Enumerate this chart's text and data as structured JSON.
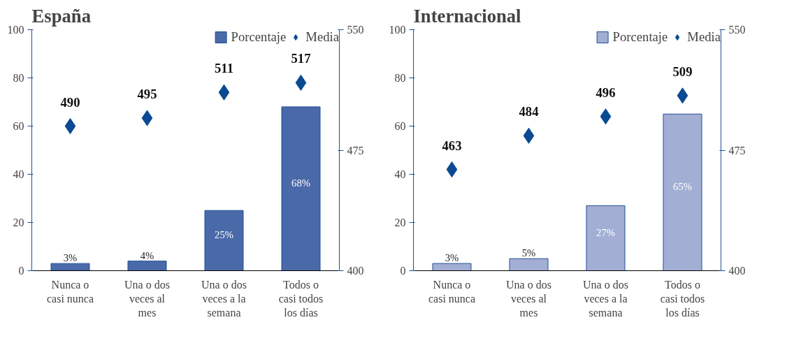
{
  "chart_data": [
    {
      "type": "bar",
      "title": "España",
      "categories": [
        "Nunca o casi nunca",
        "Una o dos veces al mes",
        "Una o dos veces a la semana",
        "Todos o casi todos los días"
      ],
      "series": [
        {
          "name": "Porcentaje",
          "type": "bar",
          "color": "#4a69a8",
          "values": [
            3,
            4,
            25,
            68
          ],
          "value_labels": [
            "3%",
            "4%",
            "25%",
            "68%"
          ]
        },
        {
          "name": "Media",
          "type": "scatter",
          "axis": "y2",
          "marker": "diamond",
          "color": "#0a4a92",
          "values": [
            490,
            495,
            511,
            517
          ],
          "value_labels": [
            "490",
            "495",
            "511",
            "517"
          ]
        }
      ],
      "ylim": [
        0,
        100
      ],
      "yticks": [
        0,
        20,
        40,
        60,
        80,
        100
      ],
      "y2lim": [
        400,
        550
      ],
      "y2ticks": [
        400,
        475,
        550
      ],
      "grid": false,
      "legend": "top right"
    },
    {
      "type": "bar",
      "title": "Internacional",
      "categories": [
        "Nunca o casi nunca",
        "Una o dos veces al mes",
        "Una o dos veces a la semana",
        "Todos o casi todos los días"
      ],
      "series": [
        {
          "name": "Porcentaje",
          "type": "bar",
          "color": "#a3aed4",
          "values": [
            3,
            5,
            27,
            65
          ],
          "value_labels": [
            "3%",
            "5%",
            "27%",
            "65%"
          ]
        },
        {
          "name": "Media",
          "type": "scatter",
          "axis": "y2",
          "marker": "diamond",
          "color": "#0a4a92",
          "values": [
            463,
            484,
            496,
            509
          ],
          "value_labels": [
            "463",
            "484",
            "496",
            "509"
          ]
        }
      ],
      "ylim": [
        0,
        100
      ],
      "yticks": [
        0,
        20,
        40,
        60,
        80,
        100
      ],
      "y2lim": [
        400,
        550
      ],
      "y2ticks": [
        400,
        475,
        550
      ],
      "grid": false,
      "legend": "top right"
    }
  ]
}
